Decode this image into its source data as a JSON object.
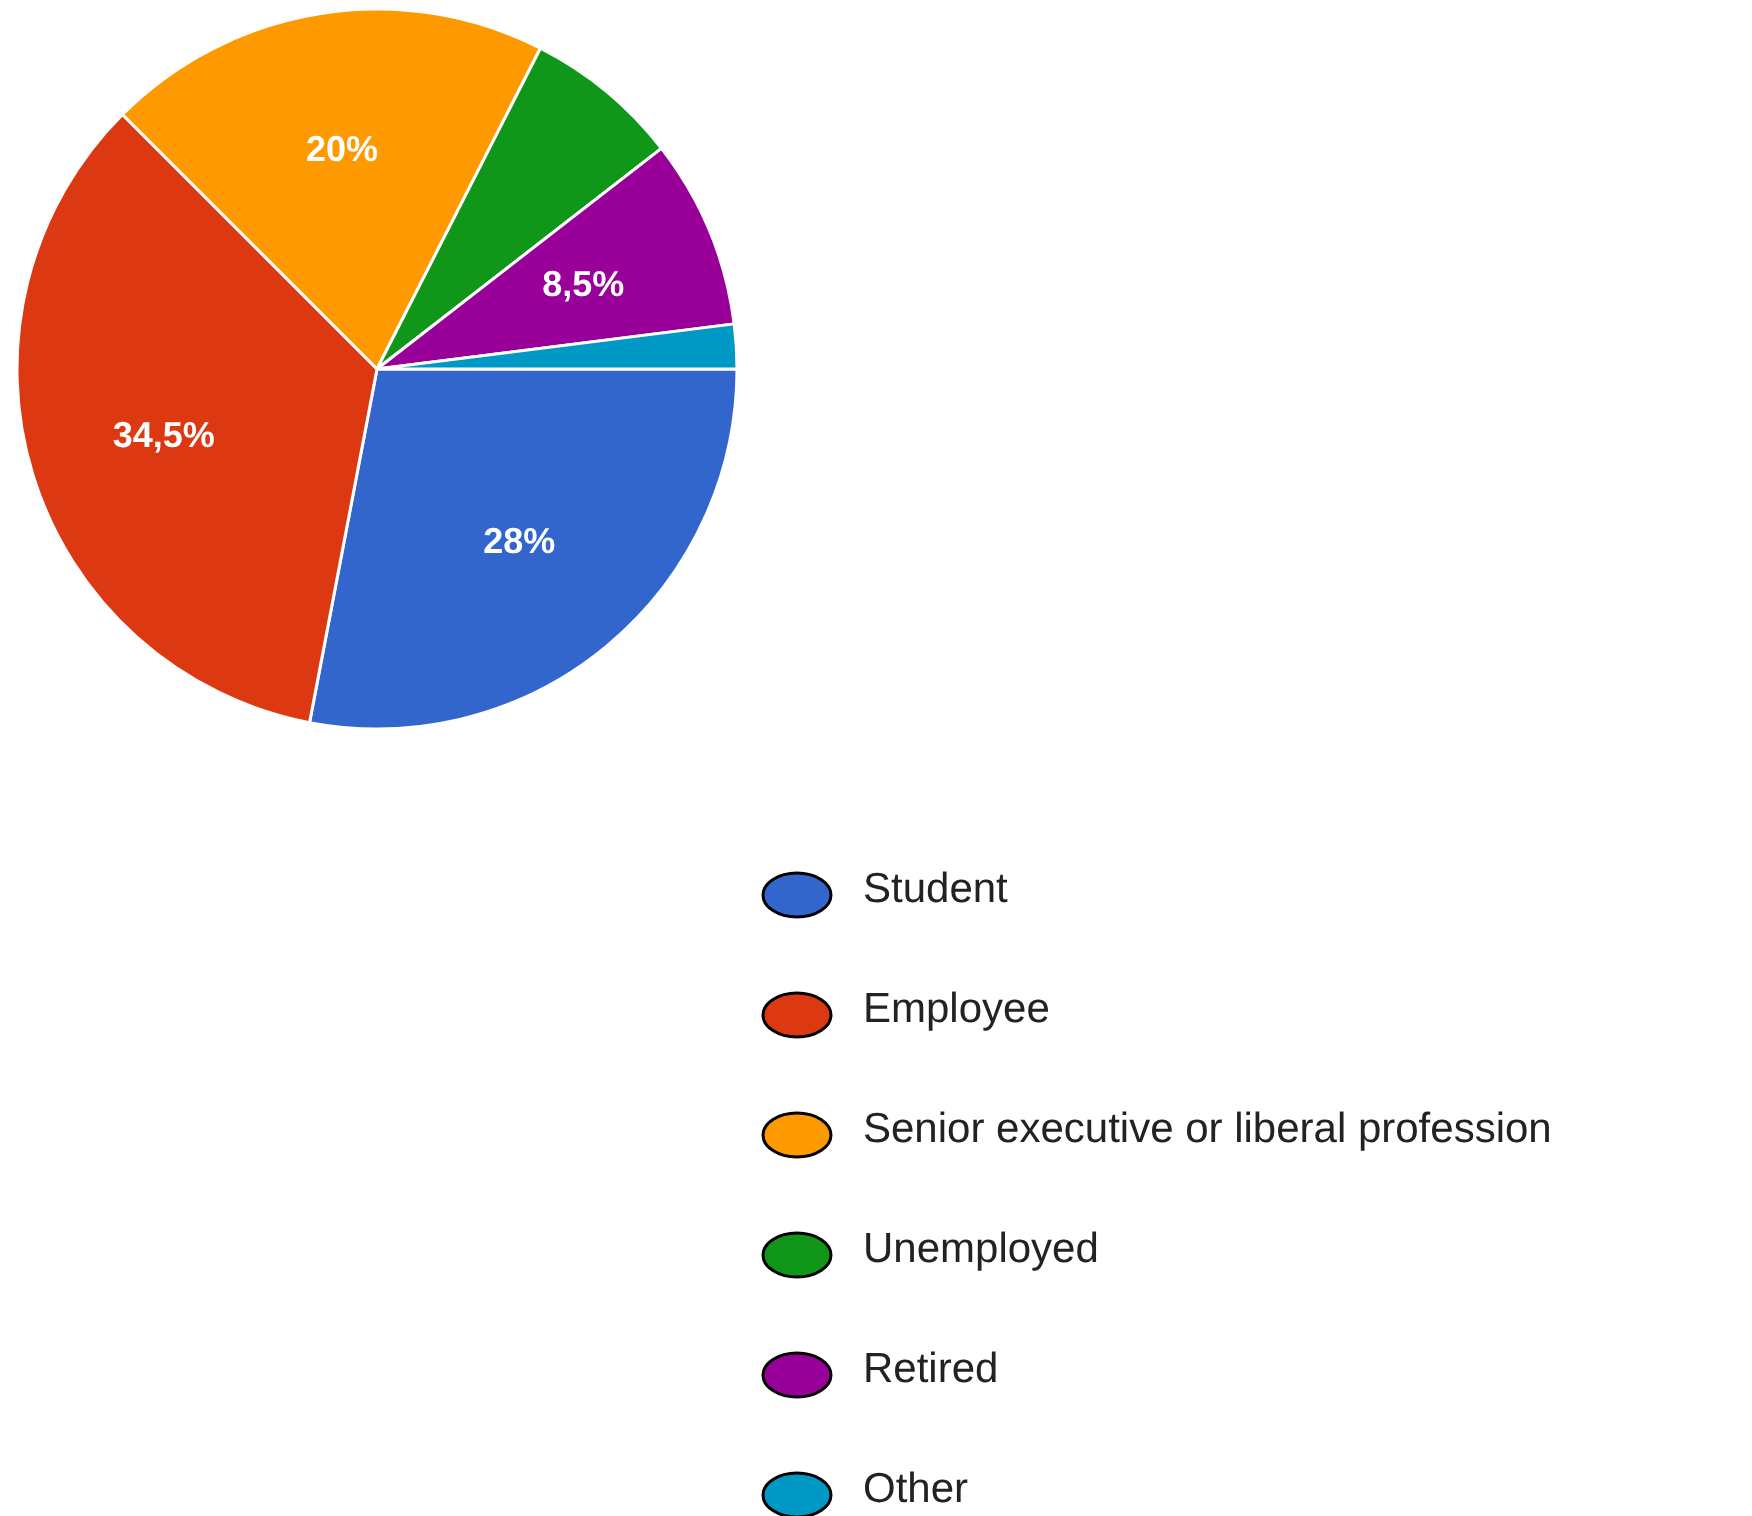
{
  "chart_data": {
    "type": "pie",
    "categories": [
      "Student",
      "Employee",
      "Senior executive or liberal profession",
      "Unemployed",
      "Retired",
      "Other"
    ],
    "values": [
      28,
      34.5,
      20,
      7,
      8.5,
      2
    ],
    "colors": [
      "#3366cc",
      "#dc3912",
      "#ff9900",
      "#109618",
      "#990099",
      "#0099c6"
    ],
    "value_labels": [
      "28%",
      "34,5%",
      "20%",
      null,
      "8,5%",
      null
    ],
    "legend": "bottom right"
  }
}
